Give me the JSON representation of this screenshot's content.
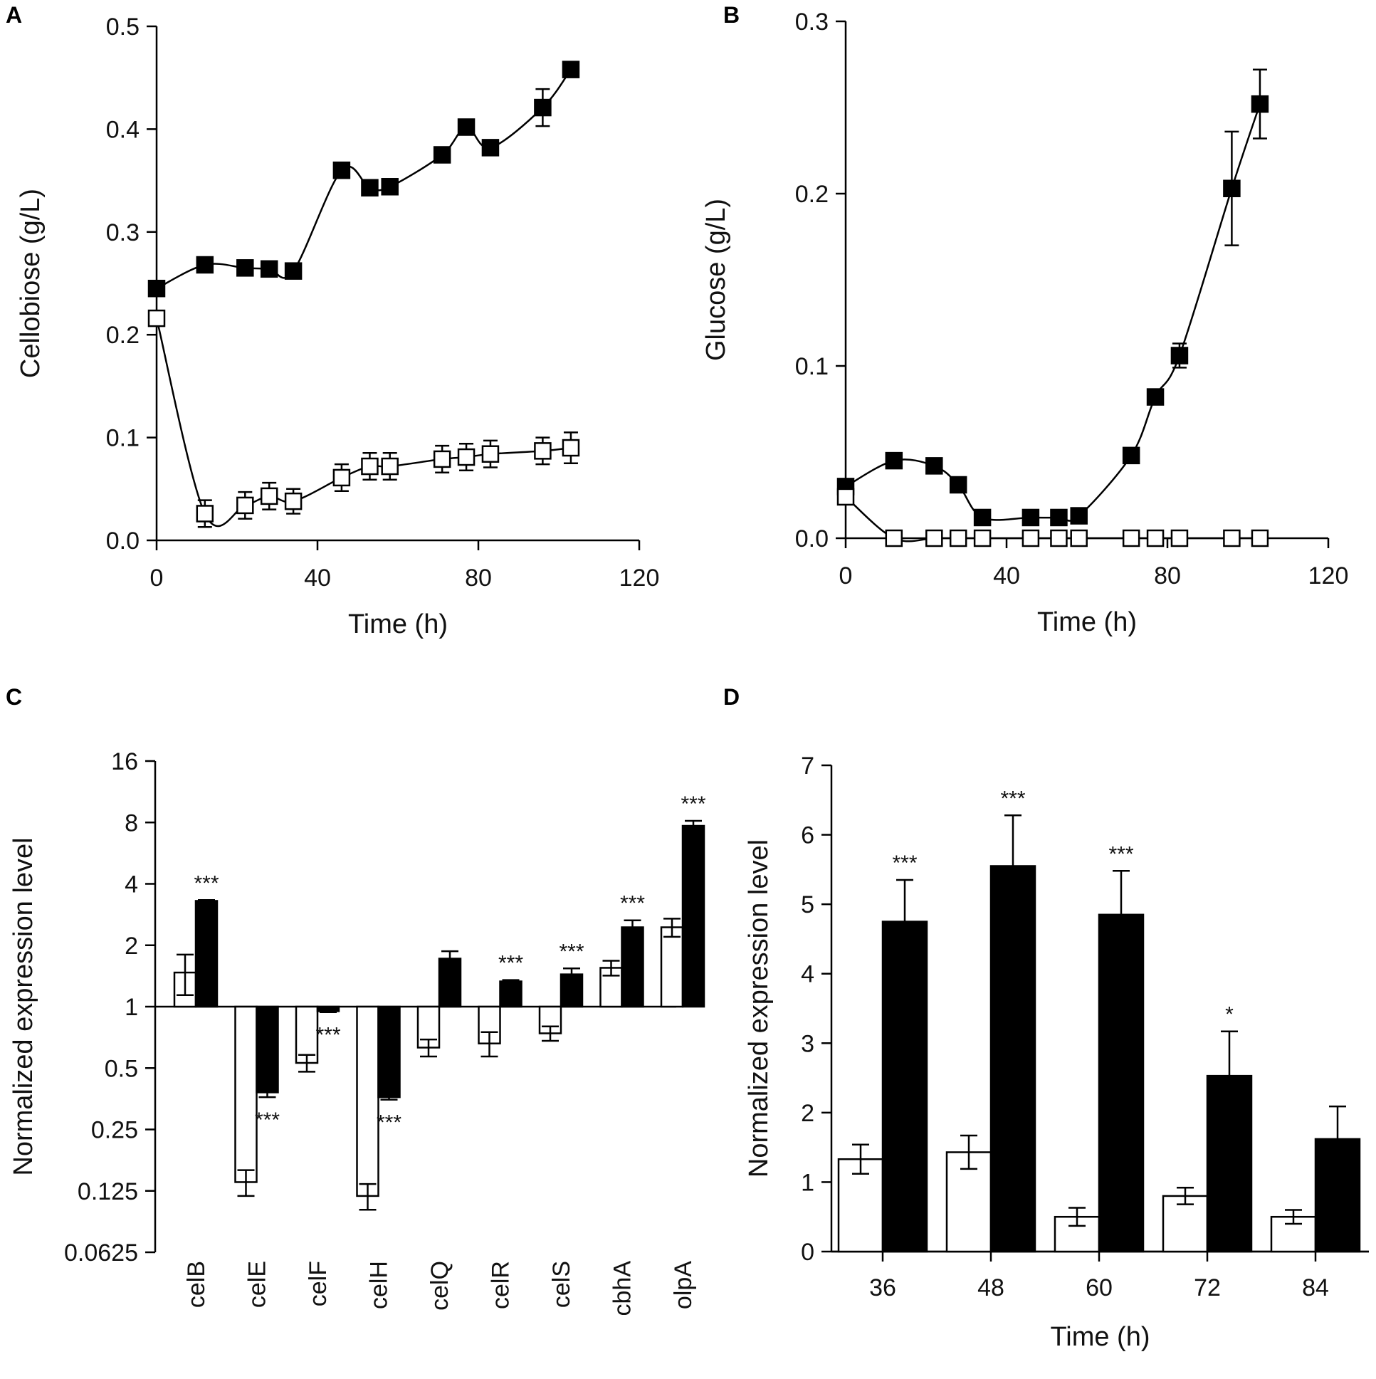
{
  "chart_data": [
    {
      "panel": "A",
      "type": "line",
      "xlabel": "Time (h)",
      "ylabel": "Cellobiose (g/L)",
      "xlim": [
        0,
        120
      ],
      "ylim": [
        0,
        0.5
      ],
      "xticks": [
        "0",
        "40",
        "80",
        "120"
      ],
      "yticks": [
        "0.0",
        "0.1",
        "0.2",
        "0.3",
        "0.4",
        "0.5"
      ],
      "series": [
        {
          "name": "filled",
          "marker": "filled-square",
          "x": [
            0,
            12,
            22,
            28,
            34,
            46,
            53,
            58,
            71,
            77,
            83,
            96,
            103
          ],
          "y": [
            0.245,
            0.268,
            0.265,
            0.264,
            0.262,
            0.36,
            0.343,
            0.344,
            0.375,
            0.402,
            0.382,
            0.421,
            0.458
          ],
          "err": [
            0,
            0,
            0,
            0,
            0,
            0.005,
            0.005,
            0.005,
            0.005,
            0.005,
            0,
            0.018,
            0
          ]
        },
        {
          "name": "open",
          "marker": "open-square",
          "x": [
            0,
            12,
            22,
            28,
            34,
            46,
            53,
            58,
            71,
            77,
            83,
            96,
            103
          ],
          "y": [
            0.216,
            0.026,
            0.034,
            0.043,
            0.038,
            0.061,
            0.072,
            0.072,
            0.079,
            0.081,
            0.084,
            0.087,
            0.09
          ],
          "err": [
            0,
            0.013,
            0.013,
            0.013,
            0.012,
            0.013,
            0.013,
            0.013,
            0.013,
            0.013,
            0.013,
            0.013,
            0.015
          ]
        }
      ]
    },
    {
      "panel": "B",
      "type": "line",
      "xlabel": "Time (h)",
      "ylabel": "Glucose (g/L)",
      "xlim": [
        0,
        120
      ],
      "ylim": [
        0,
        0.3
      ],
      "xticks": [
        "0",
        "40",
        "80",
        "120"
      ],
      "yticks": [
        "0.0",
        "0.1",
        "0.2",
        "0.3"
      ],
      "series": [
        {
          "name": "filled",
          "marker": "filled-square",
          "x": [
            0,
            12,
            22,
            28,
            34,
            46,
            53,
            58,
            71,
            77,
            83,
            96,
            103
          ],
          "y": [
            0.03,
            0.045,
            0.042,
            0.031,
            0.012,
            0.012,
            0.012,
            0.013,
            0.048,
            0.082,
            0.106,
            0.203,
            0.252
          ],
          "err": [
            0,
            0,
            0,
            0,
            0,
            0,
            0,
            0,
            0.003,
            0,
            0.007,
            0.033,
            0.02
          ]
        },
        {
          "name": "open",
          "marker": "open-square",
          "x": [
            0,
            12,
            22,
            28,
            34,
            46,
            53,
            58,
            71,
            77,
            83,
            96,
            103
          ],
          "y": [
            0.024,
            0,
            0,
            0,
            0,
            0,
            0,
            0,
            0,
            0,
            0,
            0,
            0
          ],
          "err": [
            0,
            0,
            0,
            0,
            0,
            0,
            0,
            0,
            0,
            0,
            0,
            0,
            0
          ]
        }
      ]
    },
    {
      "panel": "C",
      "type": "bar",
      "scale": "log2",
      "baseline": 1,
      "xlabel": "",
      "ylabel": "Normalized expression level",
      "ylim": [
        0.0625,
        16
      ],
      "yticks": [
        "16",
        "8",
        "4",
        "2",
        "1",
        "0.5",
        "0.25",
        "0.125",
        "0.0625"
      ],
      "categories": [
        "celB",
        "celE",
        "celF",
        "celH",
        "celQ",
        "celR",
        "celS",
        "cbhA",
        "olpA"
      ],
      "series": [
        {
          "name": "open",
          "values": [
            1.47,
            0.138,
            0.53,
            0.118,
            0.63,
            0.66,
            0.74,
            1.55,
            2.45
          ],
          "err": [
            0.33,
            0.02,
            0.05,
            0.017,
            0.06,
            0.09,
            0.06,
            0.13,
            0.25
          ]
        },
        {
          "name": "filled",
          "values": [
            3.3,
            0.38,
            0.95,
            0.36,
            1.72,
            1.33,
            1.44,
            2.45,
            7.7
          ],
          "err": [
            0.03,
            0.02,
            0.01,
            0.01,
            0.15,
            0.02,
            0.1,
            0.2,
            0.45
          ]
        }
      ],
      "significance": [
        "***",
        "***",
        "***",
        "***",
        "",
        "***",
        "***",
        "***",
        "***"
      ]
    },
    {
      "panel": "D",
      "type": "bar",
      "xlabel": "Time (h)",
      "ylabel": "Normalized expression level",
      "ylim": [
        0,
        7
      ],
      "yticks": [
        "0",
        "1",
        "2",
        "3",
        "4",
        "5",
        "6",
        "7"
      ],
      "categories": [
        "36",
        "48",
        "60",
        "72",
        "84"
      ],
      "series": [
        {
          "name": "open",
          "values": [
            1.33,
            1.43,
            0.5,
            0.8,
            0.5
          ],
          "err": [
            0.21,
            0.24,
            0.13,
            0.12,
            0.1
          ]
        },
        {
          "name": "filled",
          "values": [
            4.75,
            5.55,
            4.85,
            2.53,
            1.62
          ],
          "err": [
            0.6,
            0.73,
            0.63,
            0.64,
            0.47
          ]
        }
      ],
      "significance": [
        "***",
        "***",
        "***",
        "*",
        ""
      ]
    }
  ]
}
